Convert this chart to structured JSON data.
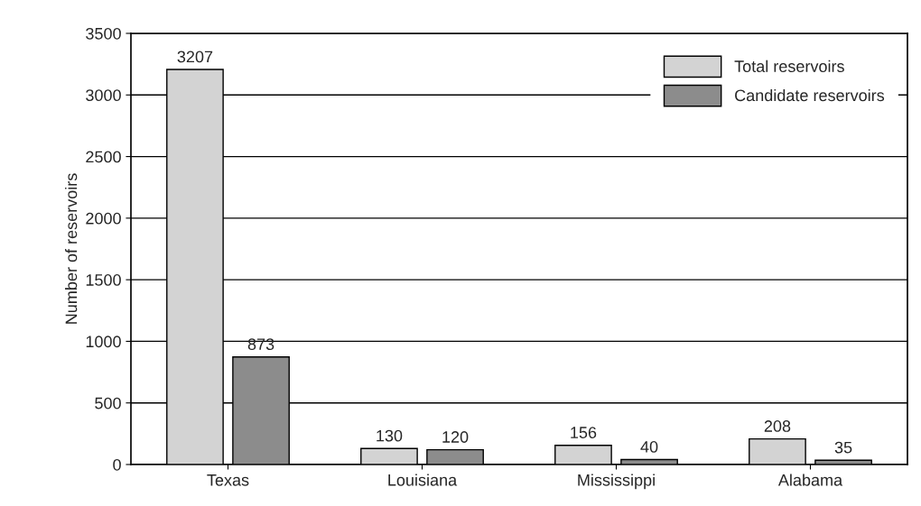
{
  "chart_data": {
    "type": "bar",
    "ylabel": "Number of reservoirs",
    "categories": [
      "Texas",
      "Louisiana",
      "Mississippi",
      "Alabama"
    ],
    "series": [
      {
        "name": "Total reservoirs",
        "color": "#d3d3d3",
        "values": [
          3207,
          130,
          156,
          208
        ]
      },
      {
        "name": "Candidate reservoirs",
        "color": "#8c8c8c",
        "values": [
          873,
          120,
          40,
          35
        ]
      }
    ],
    "ylim": [
      0,
      3500
    ],
    "yticks": [
      0,
      500,
      1000,
      1500,
      2000,
      2500,
      3000,
      3500
    ],
    "grid": "y",
    "legend": "top right",
    "data_labels": true
  }
}
